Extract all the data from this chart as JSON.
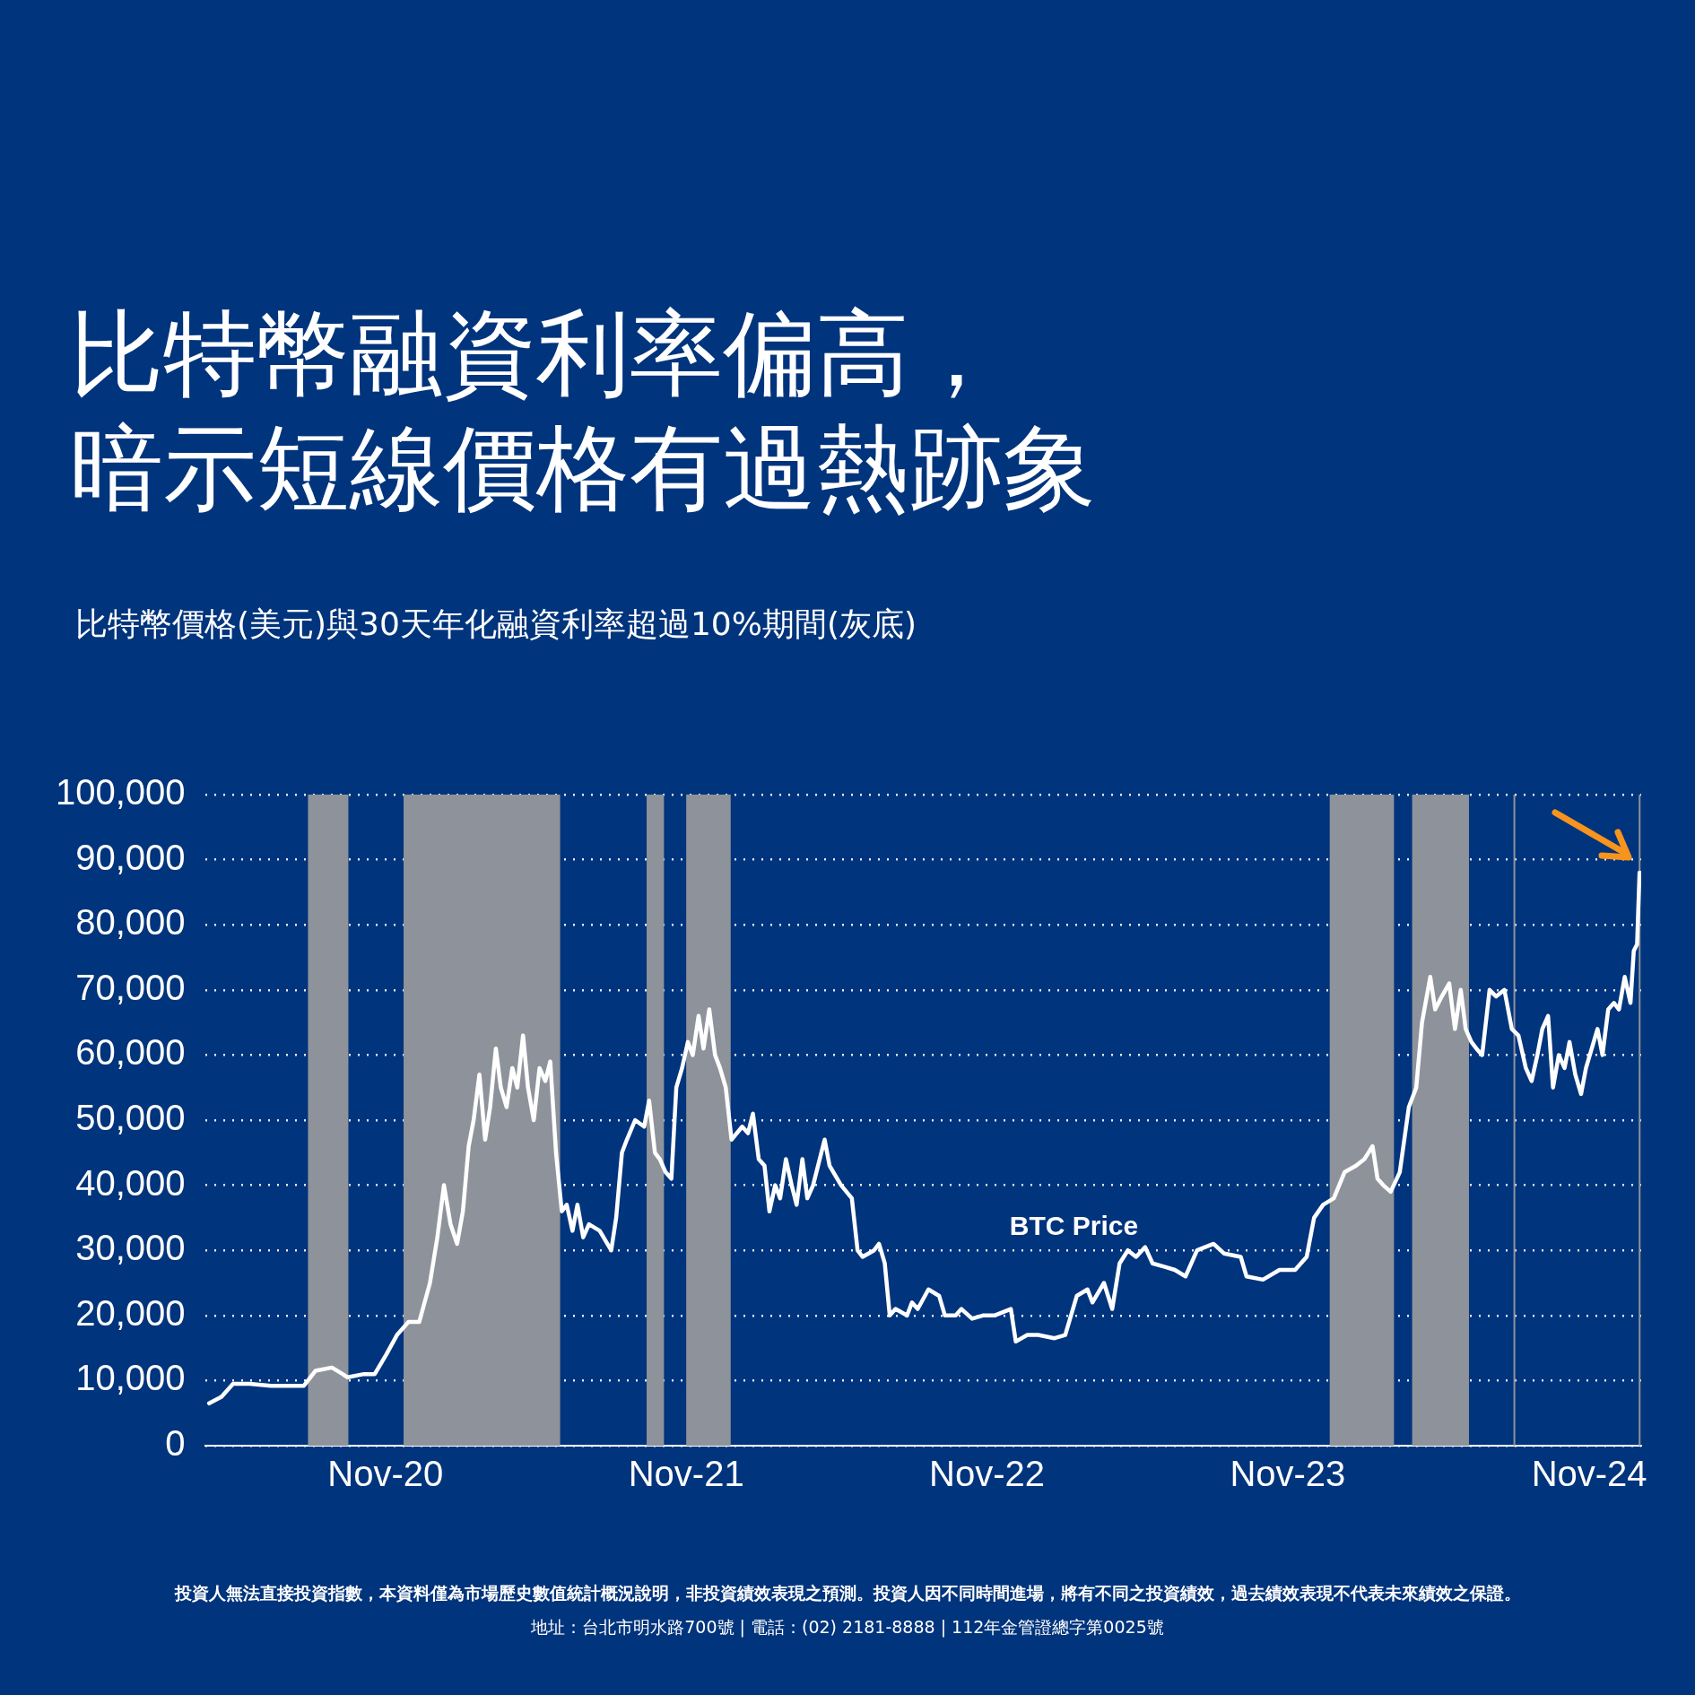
{
  "chart_data": {
    "type": "line",
    "title": "比特幣融資利率偏高，暗示短線價格有過熱跡象",
    "subtitle": "比特幣價格(美元)與30天年化融資利率超過10%期間(灰底)",
    "x": [
      "2020-04-01",
      "2020-04-16",
      "2020-04-30",
      "2020-05-20",
      "2020-06-15",
      "2020-07-25",
      "2020-08-08",
      "2020-08-28",
      "2020-09-10",
      "2020-09-16",
      "2020-10-06",
      "2020-10-19",
      "2020-11-02",
      "2020-11-15",
      "2020-11-29",
      "2020-12-12",
      "2020-12-25",
      "2021-01-03",
      "2021-01-11",
      "2021-01-19",
      "2021-01-27",
      "2021-02-03",
      "2021-02-10",
      "2021-02-16",
      "2021-02-23",
      "2021-03-02",
      "2021-03-08",
      "2021-03-15",
      "2021-03-21",
      "2021-03-28",
      "2021-04-04",
      "2021-04-10",
      "2021-04-17",
      "2021-04-23",
      "2021-04-30",
      "2021-05-07",
      "2021-05-14",
      "2021-05-20",
      "2021-05-27",
      "2021-06-03",
      "2021-06-09",
      "2021-06-16",
      "2021-06-22",
      "2021-06-29",
      "2021-07-06",
      "2021-07-19",
      "2021-08-02",
      "2021-08-08",
      "2021-08-15",
      "2021-08-21",
      "2021-08-31",
      "2021-09-11",
      "2021-09-17",
      "2021-09-24",
      "2021-09-30",
      "2021-10-07",
      "2021-10-14",
      "2021-10-20",
      "2021-10-27",
      "2021-11-03",
      "2021-11-09",
      "2021-11-16",
      "2021-11-22",
      "2021-11-29",
      "2021-12-06",
      "2021-12-12",
      "2021-12-19",
      "2021-12-26",
      "2022-01-08",
      "2022-01-15",
      "2022-01-21",
      "2022-01-28",
      "2022-02-04",
      "2022-02-10",
      "2022-02-17",
      "2022-02-23",
      "2022-03-02",
      "2022-03-09",
      "2022-03-15",
      "2022-03-22",
      "2022-03-28",
      "2022-04-04",
      "2022-04-18",
      "2022-04-24",
      "2022-05-08",
      "2022-05-21",
      "2022-05-28",
      "2022-06-03",
      "2022-06-17",
      "2022-06-23",
      "2022-06-30",
      "2022-07-06",
      "2022-07-13",
      "2022-07-27",
      "2022-08-02",
      "2022-08-09",
      "2022-08-22",
      "2022-09-04",
      "2022-09-11",
      "2022-09-24",
      "2022-10-01",
      "2022-10-14",
      "2022-10-27",
      "2022-11-10",
      "2022-11-30",
      "2022-12-06",
      "2022-12-20",
      "2023-01-02",
      "2023-01-22",
      "2023-02-04",
      "2023-02-18",
      "2023-03-03",
      "2023-03-09",
      "2023-03-23",
      "2023-04-02",
      "2023-04-11",
      "2023-04-21",
      "2023-05-01",
      "2023-05-12",
      "2023-05-21",
      "2023-06-04",
      "2023-06-17",
      "2023-06-30",
      "2023-07-14",
      "2023-08-03",
      "2023-08-16",
      "2023-09-05",
      "2023-09-12",
      "2023-10-02",
      "2023-10-22",
      "2023-11-10",
      "2023-11-24",
      "2023-12-03",
      "2023-12-14",
      "2023-12-27",
      "2024-01-09",
      "2024-01-23",
      "2024-02-02",
      "2024-02-12",
      "2024-02-18",
      "2024-02-25",
      "2024-03-05",
      "2024-03-16",
      "2024-03-27",
      "2024-04-05",
      "2024-04-12",
      "2024-04-22",
      "2024-04-28",
      "2024-05-06",
      "2024-05-15",
      "2024-05-22",
      "2024-05-29",
      "2024-06-04",
      "2024-06-11",
      "2024-06-17",
      "2024-06-24",
      "2024-07-03",
      "2024-07-11",
      "2024-07-21",
      "2024-07-30",
      "2024-08-07",
      "2024-08-16",
      "2024-08-23",
      "2024-08-30",
      "2024-09-05",
      "2024-09-12",
      "2024-09-18",
      "2024-09-25",
      "2024-10-02",
      "2024-10-08",
      "2024-10-15",
      "2024-10-22",
      "2024-10-28",
      "2024-11-04",
      "2024-11-11",
      "2024-11-17",
      "2024-11-24",
      "2024-12-01",
      "2024-12-07",
      "2024-12-14",
      "2024-12-21",
      "2024-12-25",
      "2024-12-29",
      "2025-01-01"
    ],
    "series": [
      {
        "name": "BTC Price",
        "color": "#ffffff",
        "values": [
          6500,
          7500,
          9500,
          9500,
          9200,
          9200,
          11500,
          12000,
          11000,
          10500,
          11000,
          11000,
          14000,
          17000,
          19000,
          19000,
          25000,
          32000,
          40000,
          34000,
          31000,
          36000,
          46000,
          50000,
          57000,
          47000,
          52000,
          61000,
          55000,
          52000,
          58000,
          55000,
          63000,
          55000,
          50000,
          58000,
          56000,
          59000,
          45000,
          36000,
          37000,
          33000,
          37000,
          32000,
          34000,
          33000,
          30000,
          35000,
          45000,
          47000,
          50000,
          49000,
          53000,
          45000,
          44000,
          42000,
          41000,
          55000,
          58000,
          62000,
          60000,
          66000,
          61000,
          67000,
          60000,
          58000,
          55000,
          47000,
          49000,
          48000,
          51000,
          44000,
          43000,
          36000,
          40000,
          38000,
          44000,
          40000,
          37000,
          44000,
          38000,
          40000,
          47000,
          43000,
          40000,
          38000,
          30000,
          29000,
          30000,
          31000,
          28000,
          20000,
          21000,
          20000,
          22000,
          21000,
          24000,
          23000,
          20000,
          20000,
          21000,
          19500,
          20000,
          20000,
          21000,
          16000,
          17000,
          17000,
          16500,
          17000,
          23000,
          24000,
          22000,
          25000,
          21000,
          28000,
          30000,
          29000,
          30500,
          28000,
          27500,
          27000,
          26000,
          30000,
          31000,
          29500,
          29000,
          26000,
          25500,
          27000,
          27000,
          29000,
          35000,
          37000,
          38000,
          42000,
          43000,
          44000,
          46000,
          41000,
          40000,
          39000,
          42000,
          52000,
          55000,
          65000,
          72000,
          67000,
          69000,
          71000,
          64000,
          70000,
          64000,
          62000,
          61000,
          60000,
          70000,
          69000,
          70000,
          64000,
          63000,
          58000,
          56000,
          60000,
          64000,
          66000,
          55000,
          60000,
          58000,
          62000,
          57000,
          54000,
          58000,
          61000,
          64000,
          60000,
          67000,
          68000,
          67000,
          72000,
          68000,
          76000,
          77000,
          88000
        ]
      }
    ],
    "xlim": [
      "2020-03-27",
      "2025-01-03"
    ],
    "xticks": [
      {
        "value": "2020-11-01",
        "label": "Nov-20"
      },
      {
        "value": "2021-11-01",
        "label": "Nov-21"
      },
      {
        "value": "2022-11-01",
        "label": "Nov-22"
      },
      {
        "value": "2023-11-01",
        "label": "Nov-23"
      },
      {
        "value": "2024-11-01",
        "label": "Nov-24"
      }
    ],
    "ylim": [
      0,
      100000
    ],
    "yticks": [
      {
        "value": 0,
        "label": "0"
      },
      {
        "value": 10000,
        "label": "10,000"
      },
      {
        "value": 20000,
        "label": "20,000"
      },
      {
        "value": 30000,
        "label": "30,000"
      },
      {
        "value": 40000,
        "label": "40,000"
      },
      {
        "value": 50000,
        "label": "50,000"
      },
      {
        "value": 60000,
        "label": "60,000"
      },
      {
        "value": 70000,
        "label": "70,000"
      },
      {
        "value": 80000,
        "label": "80,000"
      },
      {
        "value": 90000,
        "label": "90,000"
      },
      {
        "value": 100000,
        "label": "100,000"
      }
    ],
    "bands": [
      {
        "axis": "x",
        "from": "2020-07-30",
        "to": "2020-09-17",
        "color": "#8e939b"
      },
      {
        "axis": "x",
        "from": "2020-11-23",
        "to": "2021-06-01",
        "color": "#8e939b"
      },
      {
        "axis": "x",
        "from": "2021-09-14",
        "to": "2021-10-05",
        "color": "#8e939b"
      },
      {
        "axis": "x",
        "from": "2021-11-01",
        "to": "2021-12-25",
        "color": "#8e939b"
      },
      {
        "axis": "x",
        "from": "2023-12-22",
        "to": "2024-03-09",
        "color": "#8e939b"
      },
      {
        "axis": "x",
        "from": "2024-03-31",
        "to": "2024-06-08",
        "color": "#8e939b"
      },
      {
        "axis": "x",
        "from": "2024-08-01",
        "to": "2024-08-03",
        "color": "#8e939b"
      },
      {
        "axis": "x",
        "from": "2024-12-31",
        "to": "2025-01-02",
        "color": "#8e939b"
      }
    ],
    "annotations": [
      "投資人無法直接投資指數，本資料僅為市場歷史數值統計概況說明，非投資績效表現之預測。投資人因不同時間進場，將有不同之投資績效，過去績效表現不代表未來績效之保證。",
      "地址：台北市明水路700號 | 電話：(02) 2181-8888 | 112年金管證總字第0025號"
    ],
    "grid": "y",
    "legend": false,
    "marker": "none",
    "line_style": "solid"
  }
}
